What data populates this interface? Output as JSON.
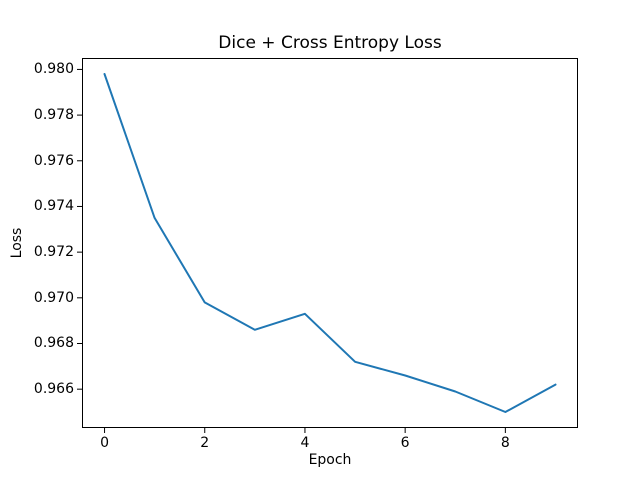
{
  "chart_data": {
    "type": "line",
    "title": "Dice + Cross Entropy Loss",
    "xlabel": "Epoch",
    "ylabel": "Loss",
    "x": [
      0,
      1,
      2,
      3,
      4,
      5,
      6,
      7,
      8,
      9
    ],
    "series": [
      {
        "name": "loss",
        "values": [
          0.9798,
          0.9735,
          0.9698,
          0.9686,
          0.9693,
          0.9672,
          0.9666,
          0.9659,
          0.965,
          0.9662
        ]
      }
    ],
    "xticks": [
      0,
      2,
      4,
      6,
      8
    ],
    "yticks": [
      0.966,
      0.968,
      0.97,
      0.972,
      0.974,
      0.976,
      0.978,
      0.98
    ],
    "xlim": [
      -0.45,
      9.45
    ],
    "ylim": [
      0.9643,
      0.9805
    ],
    "grid": false,
    "legend_position": "none",
    "line_color": "#1f77b4",
    "axis_color": "#000000",
    "background_color": "#ffffff"
  }
}
